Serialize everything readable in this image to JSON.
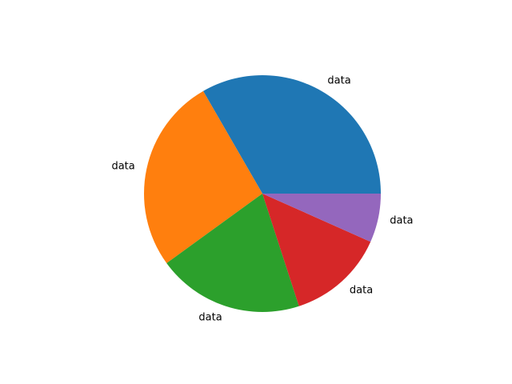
{
  "chart_data": {
    "type": "pie",
    "title": "",
    "start_angle_deg": 0,
    "direction": "counterclockwise",
    "slices": [
      {
        "label": "data",
        "value": 5,
        "color": "#1f77b4"
      },
      {
        "label": "data",
        "value": 4,
        "color": "#ff7f0e"
      },
      {
        "label": "data",
        "value": 3,
        "color": "#2ca02c"
      },
      {
        "label": "data",
        "value": 2,
        "color": "#d62728"
      },
      {
        "label": "data",
        "value": 1,
        "color": "#9467bd"
      }
    ]
  }
}
